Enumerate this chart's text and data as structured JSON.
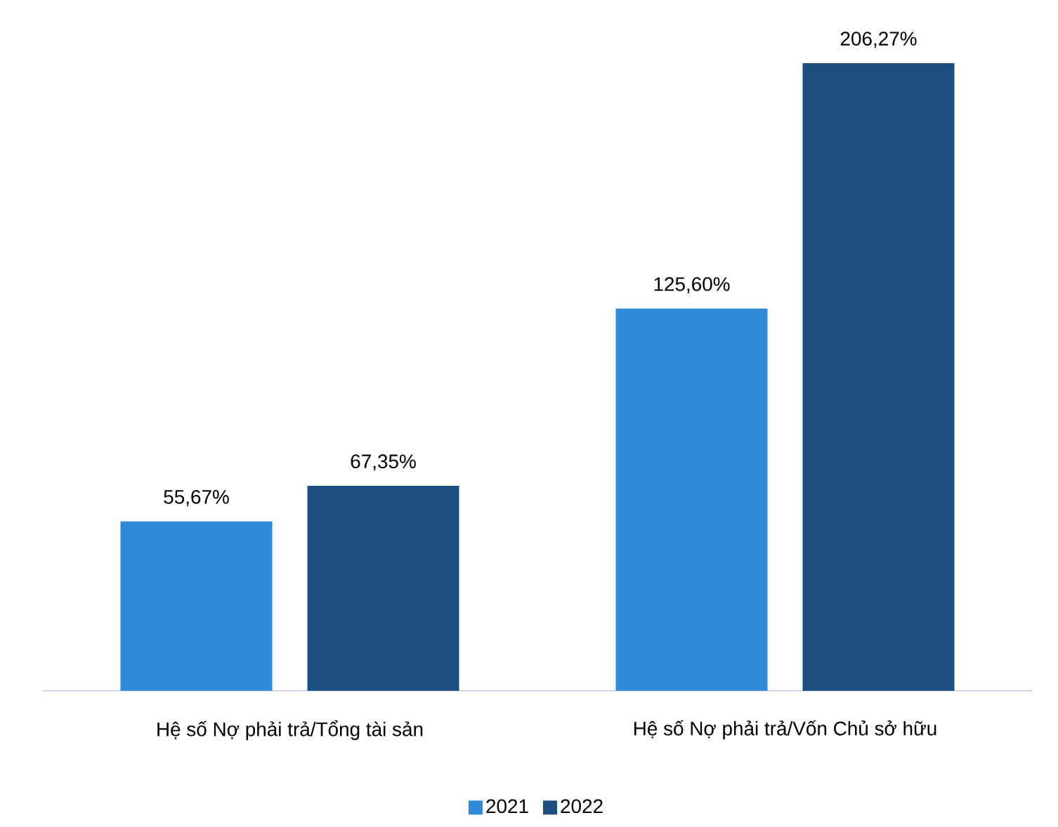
{
  "chart_data": {
    "type": "bar",
    "categories": [
      "Hệ số Nợ phải trả/Tổng tài sản",
      "Hệ số Nợ phải trả/Vốn Chủ sở hữu"
    ],
    "series": [
      {
        "name": "2021",
        "color": "#2f8bd9",
        "values": [
          55.67,
          125.6
        ],
        "value_labels": [
          "55,67%",
          "125,60%"
        ]
      },
      {
        "name": "2022",
        "color": "#1a4e7e",
        "values": [
          67.35,
          206.27
        ],
        "value_labels": [
          "67,35%",
          "206,27%"
        ]
      }
    ],
    "legend": "bottom"
  }
}
